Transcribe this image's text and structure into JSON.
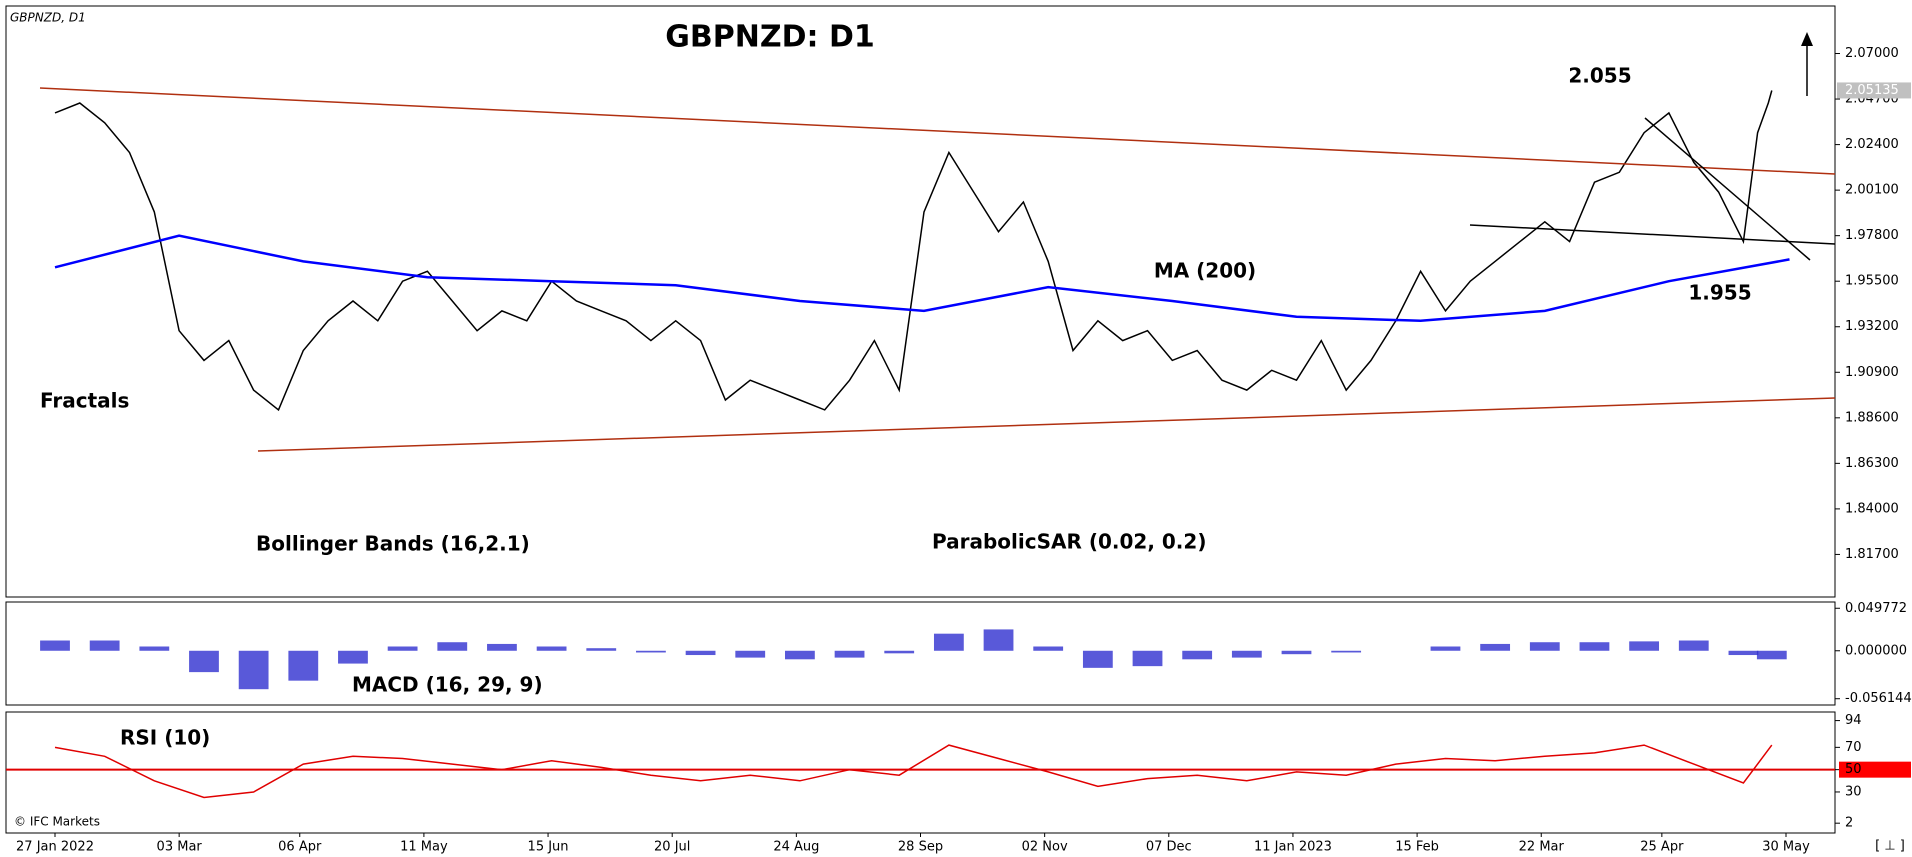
{
  "chart_data": [
    {
      "type": "line",
      "title": "GBPNZD: D1",
      "subtitle": "GBPNZD, D1",
      "annotations": [
        "2.055",
        "1.955",
        "MA (200)",
        "Fractals",
        "Bollinger Bands (16,2.1)",
        "ParabolicSAR (0.02, 0.2)"
      ],
      "last_price": {
        "value": 2.05135,
        "label": "2.05135"
      },
      "ylim": [
        1.7955,
        2.094
      ],
      "yticks": [
        {
          "value": 2.07,
          "label": "2.07000"
        },
        {
          "value": 2.047,
          "label": "2.04700"
        },
        {
          "value": 2.024,
          "label": "2.02400"
        },
        {
          "value": 2.001,
          "label": "2.00100"
        },
        {
          "value": 1.978,
          "label": "1.97800"
        },
        {
          "value": 1.955,
          "label": "1.95500"
        },
        {
          "value": 1.932,
          "label": "1.93200"
        },
        {
          "value": 1.909,
          "label": "1.90900"
        },
        {
          "value": 1.886,
          "label": "1.88600"
        },
        {
          "value": 1.863,
          "label": "1.86300"
        },
        {
          "value": 1.84,
          "label": "1.84000"
        },
        {
          "value": 1.817,
          "label": "1.81700"
        }
      ],
      "series": [
        {
          "color": "#000000",
          "x": [
            0,
            7,
            14,
            21,
            28,
            35,
            42,
            49,
            56,
            63,
            70,
            77,
            84,
            91,
            98,
            105,
            112,
            119,
            126,
            133,
            140,
            147,
            154,
            161,
            168,
            175,
            182,
            189,
            196,
            203,
            210,
            217,
            224,
            231,
            238,
            245,
            252,
            259,
            266,
            273,
            280,
            287,
            294,
            301,
            308,
            315,
            322,
            329,
            336,
            343,
            350,
            357,
            364,
            371,
            378,
            385,
            392,
            399,
            406,
            413,
            420,
            427,
            434,
            441,
            448,
            455,
            462,
            469,
            476,
            480,
            483,
            484
          ],
          "values": [
            2.04,
            2.045,
            2.035,
            2.02,
            1.99,
            1.93,
            1.915,
            1.925,
            1.9,
            1.89,
            1.92,
            1.935,
            1.945,
            1.935,
            1.955,
            1.96,
            1.945,
            1.93,
            1.94,
            1.935,
            1.955,
            1.945,
            1.94,
            1.935,
            1.925,
            1.935,
            1.925,
            1.895,
            1.905,
            1.9,
            1.895,
            1.89,
            1.905,
            1.925,
            1.9,
            1.99,
            2.02,
            2.0,
            1.98,
            1.995,
            1.965,
            1.92,
            1.935,
            1.925,
            1.93,
            1.915,
            1.92,
            1.905,
            1.9,
            1.91,
            1.905,
            1.925,
            1.9,
            1.915,
            1.935,
            1.96,
            1.94,
            1.955,
            1.965,
            1.975,
            1.985,
            1.975,
            2.005,
            2.01,
            2.03,
            2.04,
            2.015,
            2.0,
            1.975,
            2.03,
            2.045,
            2.0513
          ]
        },
        {
          "color": "#0000ff",
          "x": [
            0,
            35,
            70,
            105,
            140,
            175,
            210,
            245,
            280,
            315,
            350,
            385,
            420,
            455,
            489
          ],
          "values": [
            1.962,
            1.978,
            1.965,
            1.957,
            1.955,
            1.953,
            1.945,
            1.94,
            1.952,
            1.945,
            1.937,
            1.935,
            1.94,
            1.955,
            1.966
          ]
        }
      ]
    },
    {
      "type": "bar",
      "title": "MACD (16, 29, 9)",
      "ylim": [
        -0.0635,
        0.0571
      ],
      "yticks": [
        {
          "value": 0.049772,
          "label": "0.049772"
        },
        {
          "value": 0,
          "label": "0.000000"
        },
        {
          "value": -0.056144,
          "label": "-0.056144"
        }
      ],
      "series": [
        {
          "color": "#3030d0",
          "x": [
            0,
            14,
            28,
            42,
            56,
            70,
            84,
            98,
            112,
            126,
            140,
            154,
            168,
            182,
            196,
            210,
            224,
            238,
            252,
            266,
            280,
            294,
            308,
            322,
            336,
            350,
            364,
            378,
            392,
            406,
            420,
            434,
            448,
            462,
            476,
            484
          ],
          "values": [
            0.012,
            0.012,
            0.005,
            -0.025,
            -0.045,
            -0.035,
            -0.015,
            0.005,
            0.01,
            0.008,
            0.005,
            0.003,
            -0.002,
            -0.005,
            -0.008,
            -0.01,
            -0.008,
            -0.003,
            0.02,
            0.025,
            0.005,
            -0.02,
            -0.018,
            -0.01,
            -0.008,
            -0.004,
            -0.002,
            0.0,
            0.005,
            0.008,
            0.01,
            0.01,
            0.011,
            0.012,
            -0.005,
            -0.01
          ]
        }
      ]
    },
    {
      "type": "line",
      "title": "RSI (10)",
      "copyright": "© IFC Markets",
      "corner": "[ ⊥ ]",
      "ylim": [
        -6.8,
        101.7
      ],
      "yticks": [
        94,
        70,
        50,
        30,
        2
      ],
      "level": 50,
      "xticks": [
        {
          "value": 0,
          "label": "27 Jan 2022"
        },
        {
          "value": 35,
          "label": "03 Mar"
        },
        {
          "value": 69,
          "label": "06 Apr"
        },
        {
          "value": 104,
          "label": "11 May"
        },
        {
          "value": 139,
          "label": "15 Jun"
        },
        {
          "value": 174,
          "label": "20 Jul"
        },
        {
          "value": 209,
          "label": "24 Aug"
        },
        {
          "value": 244,
          "label": "28 Sep"
        },
        {
          "value": 279,
          "label": "02 Nov"
        },
        {
          "value": 314,
          "label": "07 Dec"
        },
        {
          "value": 349,
          "label": "11 Jan 2023"
        },
        {
          "value": 384,
          "label": "15 Feb"
        },
        {
          "value": 419,
          "label": "22 Mar"
        },
        {
          "value": 453,
          "label": "25 Apr"
        },
        {
          "value": 488,
          "label": "30 May"
        }
      ],
      "series": [
        {
          "color": "#e00000",
          "x": [
            0,
            14,
            28,
            42,
            56,
            70,
            84,
            98,
            112,
            126,
            140,
            154,
            168,
            182,
            196,
            210,
            224,
            238,
            252,
            266,
            280,
            294,
            308,
            322,
            336,
            350,
            364,
            378,
            392,
            406,
            420,
            434,
            448,
            462,
            476,
            484
          ],
          "values": [
            70,
            62,
            40,
            25,
            30,
            55,
            62,
            60,
            55,
            50,
            58,
            52,
            45,
            40,
            45,
            40,
            50,
            45,
            72,
            60,
            48,
            35,
            42,
            45,
            40,
            48,
            45,
            55,
            60,
            58,
            62,
            65,
            72,
            55,
            38,
            72
          ]
        }
      ]
    }
  ]
}
